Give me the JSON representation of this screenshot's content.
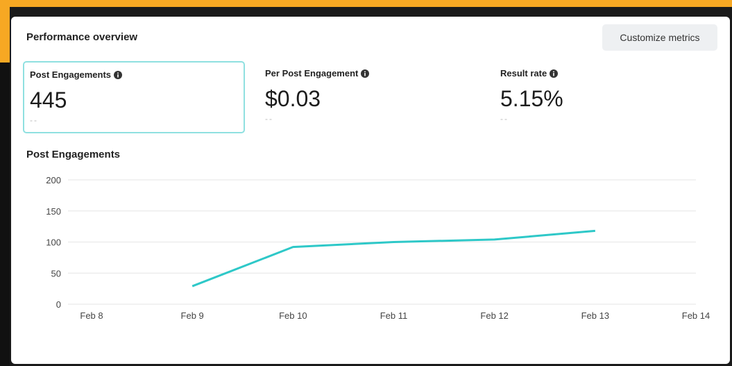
{
  "header": {
    "title": "Performance overview",
    "button": "Customize metrics"
  },
  "metrics": [
    {
      "label": "Post Engagements",
      "value": "445",
      "change": "--"
    },
    {
      "label": "Per Post Engagement",
      "value": "$0.03",
      "change": "--"
    },
    {
      "label": "Result rate",
      "value": "5.15%",
      "change": "--"
    }
  ],
  "chart_data": {
    "type": "line",
    "title": "Post Engagements",
    "categories": [
      "Feb 8",
      "Feb 9",
      "Feb 10",
      "Feb 11",
      "Feb 12",
      "Feb 13",
      "Feb 14"
    ],
    "series": [
      {
        "name": "Post Engagements",
        "color": "#2ec8c8",
        "values": [
          null,
          29,
          92,
          100,
          104,
          118,
          null
        ]
      }
    ],
    "ylim": [
      0,
      200
    ],
    "yticks": [
      0,
      50,
      100,
      150,
      200
    ],
    "grid": true
  }
}
